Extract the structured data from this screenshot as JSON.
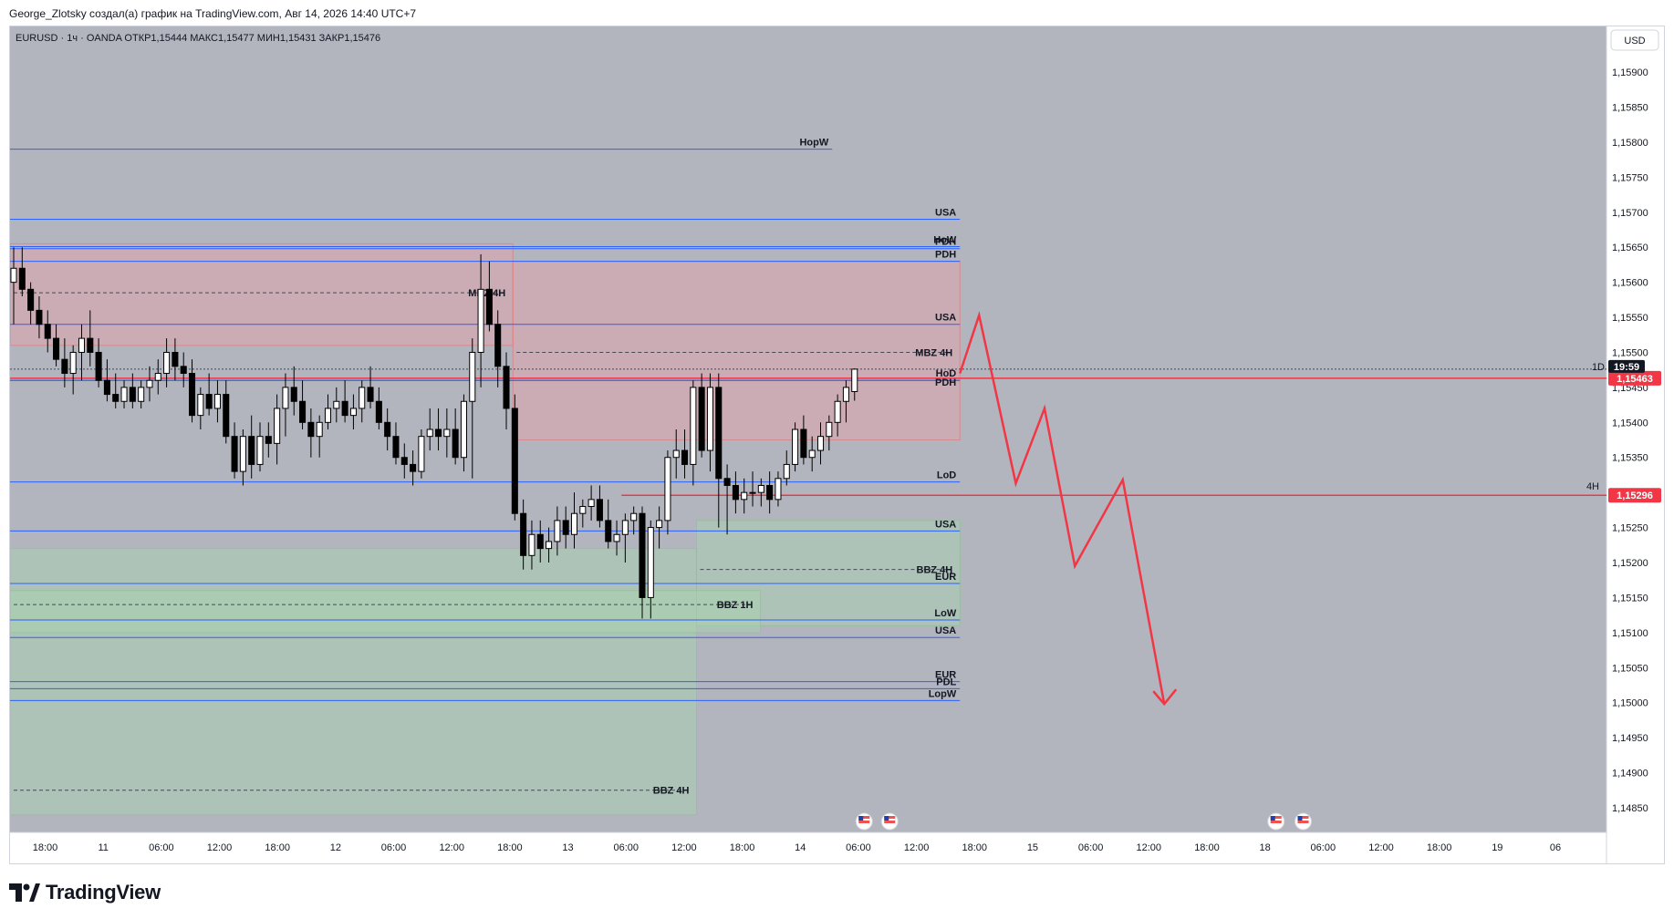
{
  "header": {
    "attribution": "George_Zlotsky создал(а) график на TradingView.com, Авг 14, 2026 14:40 UTC+7"
  },
  "chart_info": {
    "legend": "EURUSD · 1ч · OANDA  ОТКР1,15444  МАКС1,15477  МИН1,15431  ЗАКР1,15476",
    "currency_button": "USD",
    "countdown": "19:59",
    "countdown_prefix": "1D",
    "price_label_1": "1,15463",
    "price_label_2": "1,15296",
    "tf_label_2": "4H"
  },
  "branding": {
    "name": "TradingView"
  },
  "colors": {
    "background": "#b2b5be",
    "red_zone": "#e8a0a8",
    "green_zone": "#a8d5b0",
    "level_line": "#2962ff",
    "red_line": "#f23645",
    "candle_up": "#ffffff",
    "candle_down": "#000000"
  },
  "chart_data": {
    "type": "candlestick",
    "symbol": "EURUSD",
    "timeframe": "1ч",
    "source": "OANDA",
    "ohlc_last": {
      "open": 1.15444,
      "high": 1.15477,
      "low": 1.15431,
      "close": 1.15476
    },
    "ylim": [
      1.1482,
      1.1596
    ],
    "y_ticks": [
      "1,15900",
      "1,15850",
      "1,15800",
      "1,15750",
      "1,15700",
      "1,15650",
      "1,15600",
      "1,15550",
      "1,15500",
      "1,15450",
      "1,15400",
      "1,15350",
      "1,15300",
      "1,15250",
      "1,15200",
      "1,15150",
      "1,15100",
      "1,15050",
      "1,15000",
      "1,14950",
      "1,14900",
      "1,14850"
    ],
    "x_ticks": [
      "18:00",
      "11",
      "06:00",
      "12:00",
      "18:00",
      "12",
      "06:00",
      "12:00",
      "18:00",
      "13",
      "06:00",
      "12:00",
      "18:00",
      "14",
      "06:00",
      "12:00",
      "18:00",
      "15",
      "06:00",
      "12:00",
      "18:00",
      "18",
      "06:00",
      "12:00",
      "18:00",
      "19",
      "06"
    ],
    "candles": [
      [
        1.156,
        1.1565,
        1.1554,
        1.1562
      ],
      [
        1.1562,
        1.1565,
        1.1558,
        1.1559
      ],
      [
        1.1559,
        1.156,
        1.1554,
        1.1556
      ],
      [
        1.1556,
        1.1558,
        1.1552,
        1.1554
      ],
      [
        1.1554,
        1.1556,
        1.155,
        1.1552
      ],
      [
        1.1552,
        1.1554,
        1.1548,
        1.1549
      ],
      [
        1.1549,
        1.1552,
        1.1545,
        1.1547
      ],
      [
        1.1547,
        1.1551,
        1.1544,
        1.155
      ],
      [
        1.155,
        1.1554,
        1.1546,
        1.1552
      ],
      [
        1.1552,
        1.1556,
        1.1548,
        1.155
      ],
      [
        1.155,
        1.1552,
        1.1545,
        1.1546
      ],
      [
        1.1546,
        1.1549,
        1.1543,
        1.1544
      ],
      [
        1.1544,
        1.1547,
        1.1542,
        1.1543
      ],
      [
        1.1543,
        1.1546,
        1.1542,
        1.1545
      ],
      [
        1.1545,
        1.1547,
        1.1542,
        1.1543
      ],
      [
        1.1543,
        1.1546,
        1.1542,
        1.1545
      ],
      [
        1.1545,
        1.1548,
        1.1543,
        1.1546
      ],
      [
        1.1546,
        1.1549,
        1.1544,
        1.1547
      ],
      [
        1.1547,
        1.1552,
        1.1545,
        1.155
      ],
      [
        1.155,
        1.1552,
        1.1546,
        1.1548
      ],
      [
        1.1548,
        1.155,
        1.1545,
        1.1547
      ],
      [
        1.1547,
        1.1549,
        1.154,
        1.1541
      ],
      [
        1.1541,
        1.1545,
        1.1539,
        1.1544
      ],
      [
        1.1544,
        1.1547,
        1.1541,
        1.1542
      ],
      [
        1.1542,
        1.1546,
        1.154,
        1.1544
      ],
      [
        1.1544,
        1.1546,
        1.1537,
        1.1538
      ],
      [
        1.1538,
        1.154,
        1.1532,
        1.1533
      ],
      [
        1.1533,
        1.1539,
        1.1531,
        1.1538
      ],
      [
        1.1538,
        1.1541,
        1.1532,
        1.1534
      ],
      [
        1.1534,
        1.154,
        1.1533,
        1.1538
      ],
      [
        1.1538,
        1.154,
        1.1535,
        1.1537
      ],
      [
        1.1537,
        1.1544,
        1.1534,
        1.1542
      ],
      [
        1.1542,
        1.1547,
        1.1538,
        1.1545
      ],
      [
        1.1545,
        1.1548,
        1.1541,
        1.1543
      ],
      [
        1.1543,
        1.1546,
        1.1539,
        1.154
      ],
      [
        1.154,
        1.1542,
        1.1535,
        1.1538
      ],
      [
        1.1538,
        1.1541,
        1.1535,
        1.154
      ],
      [
        1.154,
        1.1544,
        1.1539,
        1.1542
      ],
      [
        1.1542,
        1.1545,
        1.154,
        1.1543
      ],
      [
        1.1543,
        1.1546,
        1.154,
        1.1541
      ],
      [
        1.1541,
        1.1544,
        1.1539,
        1.1542
      ],
      [
        1.1542,
        1.1546,
        1.154,
        1.1545
      ],
      [
        1.1545,
        1.1548,
        1.1542,
        1.1543
      ],
      [
        1.1543,
        1.1545,
        1.1539,
        1.154
      ],
      [
        1.154,
        1.1542,
        1.1536,
        1.1538
      ],
      [
        1.1538,
        1.154,
        1.1534,
        1.1535
      ],
      [
        1.1535,
        1.1537,
        1.1532,
        1.1534
      ],
      [
        1.1534,
        1.1536,
        1.1531,
        1.1533
      ],
      [
        1.1533,
        1.1539,
        1.1532,
        1.1538
      ],
      [
        1.1538,
        1.1542,
        1.1536,
        1.1539
      ],
      [
        1.1539,
        1.1542,
        1.1536,
        1.1538
      ],
      [
        1.1538,
        1.1542,
        1.1535,
        1.1539
      ],
      [
        1.1539,
        1.1542,
        1.1534,
        1.1535
      ],
      [
        1.1535,
        1.1544,
        1.1533,
        1.1543
      ],
      [
        1.1543,
        1.1552,
        1.1532,
        1.155
      ],
      [
        1.155,
        1.1564,
        1.1545,
        1.1559
      ],
      [
        1.1559,
        1.1563,
        1.1553,
        1.1554
      ],
      [
        1.1554,
        1.1556,
        1.1545,
        1.1548
      ],
      [
        1.1548,
        1.155,
        1.1539,
        1.1542
      ],
      [
        1.1542,
        1.1544,
        1.1526,
        1.1527
      ],
      [
        1.1527,
        1.1529,
        1.1519,
        1.1521
      ],
      [
        1.1521,
        1.1526,
        1.1519,
        1.1524
      ],
      [
        1.1524,
        1.1526,
        1.152,
        1.1522
      ],
      [
        1.1522,
        1.1525,
        1.152,
        1.1523
      ],
      [
        1.1523,
        1.1528,
        1.1521,
        1.1526
      ],
      [
        1.1526,
        1.1528,
        1.1522,
        1.1524
      ],
      [
        1.1524,
        1.153,
        1.1522,
        1.1527
      ],
      [
        1.1527,
        1.1529,
        1.1525,
        1.1528
      ],
      [
        1.1528,
        1.1531,
        1.1526,
        1.1529
      ],
      [
        1.1529,
        1.1531,
        1.1525,
        1.1526
      ],
      [
        1.1526,
        1.1529,
        1.1522,
        1.1523
      ],
      [
        1.1523,
        1.1526,
        1.1521,
        1.1524
      ],
      [
        1.1524,
        1.1527,
        1.152,
        1.1526
      ],
      [
        1.1526,
        1.1528,
        1.1524,
        1.1527
      ],
      [
        1.1527,
        1.1528,
        1.1512,
        1.1515
      ],
      [
        1.1515,
        1.1526,
        1.1512,
        1.1525
      ],
      [
        1.1525,
        1.1528,
        1.1522,
        1.1526
      ],
      [
        1.1526,
        1.1536,
        1.1524,
        1.1535
      ],
      [
        1.1535,
        1.1539,
        1.1532,
        1.1536
      ],
      [
        1.1536,
        1.1539,
        1.1532,
        1.1534
      ],
      [
        1.1534,
        1.1546,
        1.1531,
        1.1545
      ],
      [
        1.1545,
        1.1547,
        1.1535,
        1.1536
      ],
      [
        1.1536,
        1.1547,
        1.1533,
        1.1545
      ],
      [
        1.1545,
        1.1547,
        1.1525,
        1.1532
      ],
      [
        1.1532,
        1.1534,
        1.1524,
        1.1531
      ],
      [
        1.1531,
        1.1533,
        1.1527,
        1.1529
      ],
      [
        1.1529,
        1.1532,
        1.1527,
        1.153
      ],
      [
        1.153,
        1.1533,
        1.1528,
        1.153
      ],
      [
        1.153,
        1.1532,
        1.1528,
        1.1531
      ],
      [
        1.1531,
        1.1533,
        1.1527,
        1.1529
      ],
      [
        1.1529,
        1.1533,
        1.1528,
        1.1532
      ],
      [
        1.1532,
        1.1536,
        1.1531,
        1.1534
      ],
      [
        1.1534,
        1.154,
        1.1533,
        1.1539
      ],
      [
        1.1539,
        1.1541,
        1.1534,
        1.1535
      ],
      [
        1.1535,
        1.1538,
        1.1533,
        1.1536
      ],
      [
        1.1536,
        1.154,
        1.1534,
        1.1538
      ],
      [
        1.1538,
        1.1541,
        1.1536,
        1.154
      ],
      [
        1.154,
        1.1544,
        1.1538,
        1.1543
      ],
      [
        1.1543,
        1.1546,
        1.154,
        1.1545
      ],
      [
        1.15444,
        1.15477,
        1.15431,
        1.15476
      ]
    ],
    "zones": [
      {
        "type": "supply",
        "y_top": 1.15655,
        "y_bottom": 1.1551,
        "x_from": 0.0,
        "x_to": 0.315,
        "label": "MBZ 4H",
        "label_price": 1.15585
      },
      {
        "type": "supply",
        "y_top": 1.1563,
        "y_bottom": 1.15375,
        "x_from": 0.315,
        "x_to": 0.595,
        "label": "MBZ 4H",
        "label_price": 1.155
      },
      {
        "type": "demand",
        "y_top": 1.1526,
        "y_bottom": 1.1511,
        "x_from": 0.43,
        "x_to": 0.595,
        "label": "BBZ 4H",
        "label_price": 1.1519
      },
      {
        "type": "demand",
        "y_top": 1.1522,
        "y_bottom": 1.1484,
        "x_from": 0.0,
        "x_to": 0.43,
        "label": "BBZ 4H",
        "label_price": 1.14875
      },
      {
        "type": "demand",
        "y_top": 1.1516,
        "y_bottom": 1.151,
        "x_from": 0.0,
        "x_to": 0.47,
        "label": "BBZ 1H",
        "label_price": 1.1514
      }
    ],
    "levels": [
      {
        "label": "HopW",
        "price": 1.1579,
        "x_to": 0.515
      },
      {
        "label": "USA",
        "price": 1.1569,
        "x_to": 0.595
      },
      {
        "label": "HoW",
        "price": 1.15651,
        "x_to": 0.595
      },
      {
        "label": "PDH",
        "price": 1.15648,
        "x_to": 0.595
      },
      {
        "label": "PDH",
        "price": 1.1563,
        "x_to": 0.595
      },
      {
        "label": "USA",
        "price": 1.1554,
        "x_to": 0.595
      },
      {
        "label": "HoD",
        "price": 1.1546,
        "x_to": 0.595
      },
      {
        "label": "PDH",
        "price": 1.1546,
        "x_to": 0.595
      },
      {
        "label": "LoD",
        "price": 1.15315,
        "x_to": 0.595
      },
      {
        "label": "USA",
        "price": 1.15245,
        "x_to": 0.595
      },
      {
        "label": "EUR",
        "price": 1.1517,
        "x_to": 0.595
      },
      {
        "label": "LoW",
        "price": 1.15118,
        "x_to": 0.595
      },
      {
        "label": "USA",
        "price": 1.15093,
        "x_to": 0.595
      },
      {
        "label": "EUR",
        "price": 1.1503,
        "x_to": 0.595
      },
      {
        "label": "PDL",
        "price": 1.1502,
        "x_to": 0.595
      },
      {
        "label": "LopW",
        "price": 1.15003,
        "x_to": 0.595
      }
    ],
    "horizontal_red_lines": [
      {
        "price": 1.15463,
        "label": "1,15463"
      },
      {
        "price": 1.15296,
        "label": "1,15296"
      }
    ],
    "projection_path": [
      [
        0.595,
        1.1547
      ],
      [
        0.607,
        1.15553
      ],
      [
        0.63,
        1.15313
      ],
      [
        0.648,
        1.1542
      ],
      [
        0.667,
        1.15195
      ],
      [
        0.697,
        1.15318
      ],
      [
        0.723,
        1.14998
      ]
    ]
  }
}
